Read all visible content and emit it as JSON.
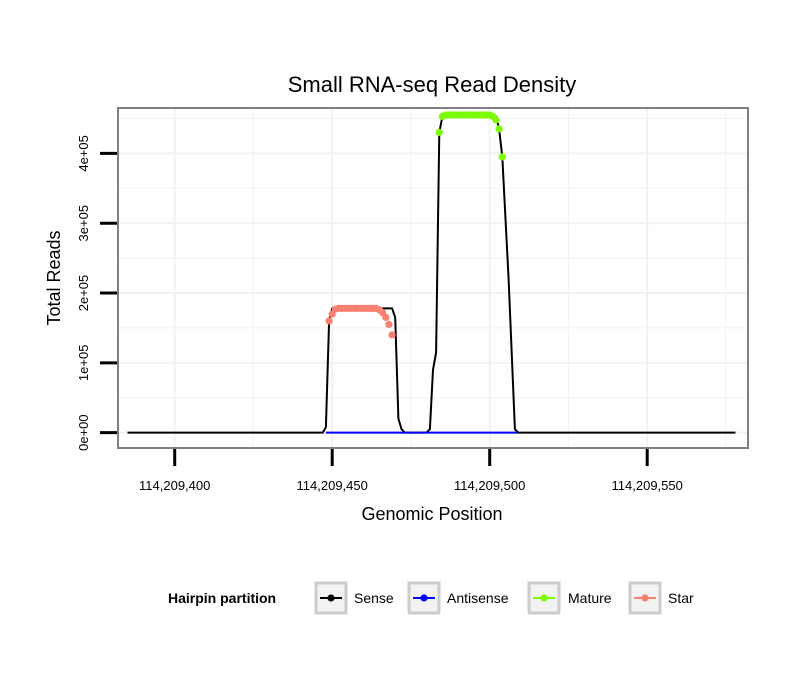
{
  "chart_data": {
    "type": "line",
    "title": "Small RNA-seq Read Density",
    "xlabel": "Genomic Position",
    "ylabel": "Total Reads",
    "xlim": [
      114209382,
      114209582
    ],
    "ylim": [
      -22000,
      465000
    ],
    "x_ticks": [
      114209400,
      114209450,
      114209500,
      114209550
    ],
    "x_tick_labels": [
      "114,209,400",
      "114,209,450",
      "114,209,500",
      "114,209,550"
    ],
    "y_ticks": [
      0,
      100000,
      200000,
      300000,
      400000
    ],
    "y_tick_labels": [
      "0e+00",
      "1e+05",
      "2e+05",
      "3e+05",
      "4e+05"
    ],
    "grid": true,
    "legend": {
      "title": "Hairpin partition",
      "position": "bottom",
      "entries": [
        {
          "name": "Sense",
          "color": "#000000"
        },
        {
          "name": "Antisense",
          "color": "#0000ff"
        },
        {
          "name": "Mature",
          "color": "#7cfc00"
        },
        {
          "name": "Star",
          "color": "#fa8072"
        }
      ]
    },
    "series": [
      {
        "name": "Sense",
        "color": "#000000",
        "style": "line",
        "points": [
          [
            114209385,
            0
          ],
          [
            114209447,
            0
          ],
          [
            114209448,
            8000
          ],
          [
            114209449,
            160000
          ],
          [
            114209450,
            178000
          ],
          [
            114209469,
            178000
          ],
          [
            114209470,
            165000
          ],
          [
            114209471,
            20000
          ],
          [
            114209472,
            5000
          ],
          [
            114209473,
            0
          ],
          [
            114209480,
            0
          ],
          [
            114209481,
            5000
          ],
          [
            114209482,
            90000
          ],
          [
            114209483,
            115000
          ],
          [
            114209484,
            430000
          ],
          [
            114209485,
            453000
          ],
          [
            114209502,
            453000
          ],
          [
            114209503,
            435000
          ],
          [
            114209504,
            395000
          ],
          [
            114209506,
            220000
          ],
          [
            114209508,
            5000
          ],
          [
            114209509,
            0
          ],
          [
            114209578,
            0
          ]
        ]
      },
      {
        "name": "Antisense",
        "color": "#0000ff",
        "style": "line",
        "points": [
          [
            114209448,
            0
          ],
          [
            114209509,
            0
          ]
        ]
      },
      {
        "name": "Mature",
        "color": "#7cfc00",
        "style": "points",
        "points": [
          [
            114209484,
            430000
          ],
          [
            114209485,
            453000
          ],
          [
            114209486,
            455000
          ],
          [
            114209487,
            455000
          ],
          [
            114209488,
            455000
          ],
          [
            114209489,
            455000
          ],
          [
            114209490,
            455000
          ],
          [
            114209491,
            455000
          ],
          [
            114209492,
            455000
          ],
          [
            114209493,
            455000
          ],
          [
            114209494,
            455000
          ],
          [
            114209495,
            455000
          ],
          [
            114209496,
            455000
          ],
          [
            114209497,
            455000
          ],
          [
            114209498,
            455000
          ],
          [
            114209499,
            455000
          ],
          [
            114209500,
            455000
          ],
          [
            114209501,
            453000
          ],
          [
            114209502,
            448000
          ],
          [
            114209503,
            435000
          ],
          [
            114209504,
            395000
          ]
        ]
      },
      {
        "name": "Star",
        "color": "#fa8072",
        "style": "points",
        "points": [
          [
            114209449,
            160000
          ],
          [
            114209450,
            170000
          ],
          [
            114209451,
            177000
          ],
          [
            114209452,
            178000
          ],
          [
            114209453,
            178000
          ],
          [
            114209454,
            178000
          ],
          [
            114209455,
            178000
          ],
          [
            114209456,
            178000
          ],
          [
            114209457,
            178000
          ],
          [
            114209458,
            178000
          ],
          [
            114209459,
            178000
          ],
          [
            114209460,
            178000
          ],
          [
            114209461,
            178000
          ],
          [
            114209462,
            178000
          ],
          [
            114209463,
            178000
          ],
          [
            114209464,
            178000
          ],
          [
            114209465,
            176000
          ],
          [
            114209466,
            172000
          ],
          [
            114209467,
            165000
          ],
          [
            114209468,
            155000
          ],
          [
            114209469,
            140000
          ]
        ]
      }
    ]
  }
}
